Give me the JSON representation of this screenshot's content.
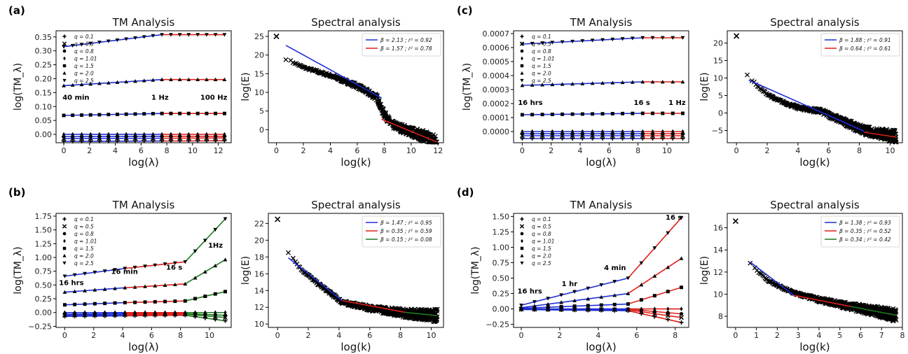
{
  "panels": [
    {
      "label": "(a)"
    },
    {
      "label": "(b)"
    },
    {
      "label": "(c)"
    },
    {
      "label": "(d)"
    }
  ],
  "colors": {
    "blue": "#1f2fd6",
    "red": "#e0201b",
    "green": "#1c7a1c",
    "black": "#000000"
  },
  "chart_data": [
    {
      "id": "a-tm",
      "type": "line",
      "title": "TM Analysis",
      "xlabel": "log(λ)",
      "ylabel": "log(TM_λ)",
      "xlim": [
        -0.6,
        13
      ],
      "ylim": [
        -0.03,
        0.372
      ],
      "xticks": [
        0,
        2,
        4,
        6,
        8,
        10,
        12
      ],
      "xtick_labels": [
        "0",
        "2",
        "4",
        "6",
        "8",
        "10",
        "12"
      ],
      "yticks": [
        0.0,
        0.05,
        0.1,
        0.15,
        0.2,
        0.25,
        0.3,
        0.35
      ],
      "ytick_labels": [
        "0.00",
        "0.05",
        "0.10",
        "0.15",
        "0.20",
        "0.25",
        "0.30",
        "0.35"
      ],
      "breaks": [
        7.6
      ],
      "x": [
        0,
        0.69,
        1.39,
        2.08,
        2.77,
        3.47,
        4.16,
        4.85,
        5.55,
        6.24,
        6.93,
        7.62,
        8.32,
        9.01,
        9.7,
        10.4,
        11.09,
        11.78,
        12.48
      ],
      "legend": [
        "q = 0.1",
        "q = 0.5",
        "q = 0.8",
        "q = 1.01",
        "q = 1.5",
        "q = 2.0",
        "q = 2.5"
      ],
      "series": [
        {
          "name": "q = 0.1",
          "marker": "plus",
          "start": -0.025,
          "mid": -0.024,
          "end": -0.023
        },
        {
          "name": "q = 0.5",
          "marker": "cross",
          "start": -0.015,
          "mid": -0.014,
          "end": -0.013
        },
        {
          "name": "q = 0.8",
          "marker": "circle",
          "start": -0.008,
          "mid": -0.007,
          "end": -0.007
        },
        {
          "name": "q = 1.01",
          "marker": "diamond",
          "start": 0.0,
          "mid": 0.0,
          "end": 0.0
        },
        {
          "name": "q = 1.5",
          "marker": "square",
          "start": 0.068,
          "mid": 0.075,
          "end": 0.075
        },
        {
          "name": "q = 2.0",
          "marker": "triangle",
          "start": 0.175,
          "mid": 0.197,
          "end": 0.197
        },
        {
          "name": "q = 2.5",
          "marker": "tri-down",
          "start": 0.315,
          "mid": 0.358,
          "end": 0.358
        }
      ],
      "annotations": [
        {
          "text": "40 min",
          "x": -0.1,
          "y": 0.125
        },
        {
          "text": "1 Hz",
          "x": 6.8,
          "y": 0.125
        },
        {
          "text": "100 Hz",
          "x": 10.6,
          "y": 0.125
        }
      ]
    },
    {
      "id": "a-spec",
      "type": "scatter",
      "title": "Spectral analysis",
      "xlabel": "log(k)",
      "ylabel": "log(E)",
      "xlim": [
        -0.6,
        12.4
      ],
      "ylim": [
        -3.5,
        26.5
      ],
      "xticks": [
        0,
        2,
        4,
        6,
        8,
        10,
        12
      ],
      "xtick_labels": [
        "0",
        "2",
        "4",
        "6",
        "8",
        "10",
        "12"
      ],
      "yticks": [
        0,
        5,
        10,
        15,
        20,
        25
      ],
      "ytick_labels": [
        "0",
        "5",
        "10",
        "15",
        "20",
        "25"
      ],
      "first_point": [
        0,
        25
      ],
      "fits": [
        {
          "label": "β = 2.13 ; r² = 0.92",
          "color": "blue",
          "x0": 0.7,
          "x1": 7.8,
          "y0": 22.6,
          "y1": 8.5
        },
        {
          "label": "β = 1.57 ; r² = 0.78",
          "color": "red",
          "x0": 7.8,
          "x1": 11.9,
          "y0": 2.8,
          "y1": -3.3
        }
      ],
      "curve": [
        [
          0.7,
          19
        ],
        [
          2,
          16.7
        ],
        [
          4,
          14.5
        ],
        [
          6,
          11.7
        ],
        [
          7.5,
          8.5
        ],
        [
          7.8,
          5.5
        ],
        [
          8.5,
          1.5
        ],
        [
          10,
          -0.6
        ],
        [
          11,
          -1.8
        ],
        [
          11.9,
          -3.2
        ]
      ]
    },
    {
      "id": "b-tm",
      "type": "line",
      "title": "TM Analysis",
      "xlabel": "log(λ)",
      "ylabel": "log(TM_λ)",
      "xlim": [
        -0.6,
        11.5
      ],
      "ylim": [
        -0.27,
        1.8
      ],
      "xticks": [
        0,
        2,
        4,
        6,
        8,
        10
      ],
      "xtick_labels": [
        "0",
        "2",
        "4",
        "6",
        "8",
        "10"
      ],
      "yticks": [
        -0.25,
        0.0,
        0.25,
        0.5,
        0.75,
        1.0,
        1.25,
        1.5,
        1.75
      ],
      "ytick_labels": [
        "−0.25",
        "0.00",
        "0.25",
        "0.50",
        "0.75",
        "1.00",
        "1.25",
        "1.50",
        "1.75"
      ],
      "breaks": [
        4.16,
        8.32
      ],
      "x": [
        0,
        0.69,
        1.39,
        2.08,
        2.77,
        3.47,
        4.16,
        4.85,
        5.55,
        6.24,
        6.93,
        7.62,
        8.32,
        9.01,
        9.7,
        10.4,
        11.09
      ],
      "legend": [
        "q = 0.1",
        "q = 0.5",
        "q = 0.8",
        "q = 1.01",
        "q = 1.5",
        "q = 2.0",
        "q = 2.5"
      ],
      "series": [
        {
          "name": "q = 0.1",
          "marker": "plus",
          "pts": [
            -0.07,
            -0.06,
            -0.05,
            -0.15
          ]
        },
        {
          "name": "q = 0.5",
          "marker": "cross",
          "pts": [
            -0.05,
            -0.04,
            -0.03,
            -0.09
          ]
        },
        {
          "name": "q = 0.8",
          "marker": "circle",
          "pts": [
            -0.03,
            -0.02,
            -0.02,
            -0.05
          ]
        },
        {
          "name": "q = 1.01",
          "marker": "diamond",
          "pts": [
            0.0,
            0.0,
            0.0,
            0.0
          ]
        },
        {
          "name": "q = 1.5",
          "marker": "square",
          "pts": [
            0.14,
            0.18,
            0.21,
            0.38
          ]
        },
        {
          "name": "q = 2.0",
          "marker": "triangle",
          "pts": [
            0.37,
            0.45,
            0.52,
            0.96
          ]
        },
        {
          "name": "q = 2.5",
          "marker": "tri-down",
          "pts": [
            0.66,
            0.8,
            0.92,
            1.7
          ]
        }
      ],
      "annotations": [
        {
          "text": "16 hrs",
          "x": -0.4,
          "y": 0.5
        },
        {
          "text": "16 min",
          "x": 3.2,
          "y": 0.7
        },
        {
          "text": "16 s",
          "x": 7.0,
          "y": 0.78
        },
        {
          "text": "1Hz",
          "x": 9.9,
          "y": 1.18
        }
      ]
    },
    {
      "id": "b-spec",
      "type": "scatter",
      "title": "Spectral analysis",
      "xlabel": "log(k)",
      "ylabel": "log(E)",
      "xlim": [
        -0.6,
        10.8
      ],
      "ylim": [
        9.6,
        23.2
      ],
      "xticks": [
        0,
        2,
        4,
        6,
        8,
        10
      ],
      "xtick_labels": [
        "0",
        "2",
        "4",
        "6",
        "8",
        "10"
      ],
      "yticks": [
        10,
        12,
        14,
        16,
        18,
        20,
        22
      ],
      "ytick_labels": [
        "10",
        "12",
        "14",
        "16",
        "18",
        "20",
        "22"
      ],
      "first_point": [
        0,
        22.5
      ],
      "fits": [
        {
          "label": "β = 1.47 ; r² = 0.95",
          "color": "blue",
          "x0": 0.7,
          "x1": 4.2,
          "y0": 17.9,
          "y1": 12.8
        },
        {
          "label": "β = 0.35 ; r² = 0.59",
          "color": "red",
          "x0": 4.2,
          "x1": 8.3,
          "y0": 12.8,
          "y1": 11.4
        },
        {
          "label": "β = 0.15 ; r² = 0.08",
          "color": "green",
          "x0": 8.3,
          "x1": 10.4,
          "y0": 11.4,
          "y1": 11.0
        }
      ],
      "curve": [
        [
          0.7,
          18.6
        ],
        [
          1.5,
          16.6
        ],
        [
          2.5,
          15.0
        ],
        [
          3.5,
          13.6
        ],
        [
          4.2,
          12.6
        ],
        [
          6,
          11.9
        ],
        [
          8.3,
          11.3
        ],
        [
          10.4,
          11.0
        ]
      ]
    },
    {
      "id": "c-tm",
      "type": "line",
      "title": "TM Analysis",
      "xlabel": "log(λ)",
      "ylabel": "log(TM_λ)",
      "xlim": [
        -0.6,
        11.5
      ],
      "ylim": [
        -8e-05,
        0.00072
      ],
      "xticks": [
        0,
        2,
        4,
        6,
        8,
        10
      ],
      "xtick_labels": [
        "0",
        "2",
        "4",
        "6",
        "8",
        "10"
      ],
      "yticks": [
        0,
        0.0001,
        0.0002,
        0.0003,
        0.0004,
        0.0005,
        0.0006,
        0.0007
      ],
      "ytick_labels": [
        "0.0000",
        "0.0001",
        "0.0002",
        "0.0003",
        "0.0004",
        "0.0005",
        "0.0006",
        "0.0007"
      ],
      "breaks": [
        8.32
      ],
      "x": [
        0,
        0.69,
        1.39,
        2.08,
        2.77,
        3.47,
        4.16,
        4.85,
        5.55,
        6.24,
        6.93,
        7.62,
        8.32,
        9.01,
        9.7,
        10.4,
        11.09
      ],
      "legend": [
        "q = 0.1",
        "q = 0.5",
        "q = 0.8",
        "q = 1.01",
        "q = 1.5",
        "q = 2.0",
        "q = 2.5"
      ],
      "series": [
        {
          "name": "q = 0.1",
          "marker": "plus",
          "start": -5e-05,
          "mid": -5e-05,
          "end": -5e-05
        },
        {
          "name": "q = 0.5",
          "marker": "cross",
          "start": -3e-05,
          "mid": -3e-05,
          "end": -3e-05
        },
        {
          "name": "q = 0.8",
          "marker": "circle",
          "start": -1.5e-05,
          "mid": -1.5e-05,
          "end": -1.5e-05
        },
        {
          "name": "q = 1.01",
          "marker": "diamond",
          "start": 0.0,
          "mid": 0.0,
          "end": 0.0
        },
        {
          "name": "q = 1.5",
          "marker": "square",
          "start": 0.00012,
          "mid": 0.00013,
          "end": 0.00013
        },
        {
          "name": "q = 2.0",
          "marker": "triangle",
          "start": 0.00033,
          "mid": 0.000355,
          "end": 0.000355
        },
        {
          "name": "q = 2.5",
          "marker": "tri-down",
          "start": 0.000625,
          "mid": 0.00067,
          "end": 0.00067
        }
      ],
      "annotations": [
        {
          "text": "16 hrs",
          "x": -0.3,
          "y": 0.00019
        },
        {
          "text": "16 s",
          "x": 7.7,
          "y": 0.00019
        },
        {
          "text": "1 Hz",
          "x": 10.1,
          "y": 0.00019
        }
      ]
    },
    {
      "id": "c-spec",
      "type": "scatter",
      "title": "Spectral analysis",
      "xlabel": "log(k)",
      "ylabel": "log(E)",
      "xlim": [
        -0.6,
        10.8
      ],
      "ylim": [
        -8.5,
        23.5
      ],
      "xticks": [
        0,
        2,
        4,
        6,
        8,
        10
      ],
      "xtick_labels": [
        "0",
        "2",
        "4",
        "6",
        "8",
        "10"
      ],
      "yticks": [
        -5,
        0,
        5,
        10,
        15,
        20
      ],
      "ytick_labels": [
        "−5",
        "0",
        "5",
        "10",
        "15",
        "20"
      ],
      "first_point": [
        0,
        22
      ],
      "fits": [
        {
          "label": "β = 1.88 ; r² = 0.91",
          "color": "blue",
          "x0": 0.8,
          "x1": 8.3,
          "y0": 9.4,
          "y1": -5.2
        },
        {
          "label": "β = 0.64 ; r² = 0.61",
          "color": "red",
          "x0": 8.3,
          "x1": 10.4,
          "y0": -5.5,
          "y1": -6.9
        }
      ],
      "curve": [
        [
          0.7,
          11
        ],
        [
          1.5,
          7
        ],
        [
          2.5,
          4
        ],
        [
          4,
          1.5
        ],
        [
          5.5,
          0.5
        ],
        [
          6.5,
          -1.5
        ],
        [
          8.3,
          -5
        ],
        [
          10.4,
          -6.8
        ]
      ]
    },
    {
      "id": "d-tm",
      "type": "line",
      "title": "TM Analysis",
      "xlabel": "log(λ)",
      "ylabel": "log(TM_λ)",
      "xlim": [
        -0.4,
        8.7
      ],
      "ylim": [
        -0.3,
        1.55
      ],
      "xticks": [
        0,
        2,
        4,
        6,
        8
      ],
      "xtick_labels": [
        "0",
        "2",
        "4",
        "6",
        "8"
      ],
      "yticks": [
        -0.25,
        0.0,
        0.25,
        0.5,
        0.75,
        1.0,
        1.25,
        1.5
      ],
      "ytick_labels": [
        "−0.25",
        "0.00",
        "0.25",
        "0.50",
        "0.75",
        "1.00",
        "1.25",
        "1.50"
      ],
      "breaks": [
        5.55
      ],
      "x": [
        0,
        0.69,
        1.39,
        2.08,
        2.77,
        3.47,
        4.16,
        4.85,
        5.55,
        6.24,
        6.93,
        7.62,
        8.32
      ],
      "legend": [
        "q = 0.1",
        "q = 0.5",
        "q = 0.8",
        "q = 1.01",
        "q = 1.5",
        "q = 2.0",
        "q = 2.5"
      ],
      "series": [
        {
          "name": "q = 0.1",
          "marker": "plus",
          "start": -0.01,
          "mid": -0.03,
          "end": -0.22
        },
        {
          "name": "q = 0.5",
          "marker": "cross",
          "start": -0.005,
          "mid": -0.015,
          "end": -0.14
        },
        {
          "name": "q = 0.8",
          "marker": "circle",
          "start": 0.0,
          "mid": -0.005,
          "end": -0.08
        },
        {
          "name": "q = 1.01",
          "marker": "diamond",
          "start": 0.0,
          "mid": 0.0,
          "end": 0.0
        },
        {
          "name": "q = 1.5",
          "marker": "square",
          "start": 0.01,
          "mid": 0.08,
          "end": 0.35
        },
        {
          "name": "q = 2.0",
          "marker": "triangle",
          "start": 0.02,
          "mid": 0.25,
          "end": 0.82
        },
        {
          "name": "q = 2.5",
          "marker": "tri-down",
          "start": 0.06,
          "mid": 0.5,
          "end": 1.48
        }
      ],
      "annotations": [
        {
          "text": "16 hrs",
          "x": -0.2,
          "y": 0.25
        },
        {
          "text": "1 hr",
          "x": 2.1,
          "y": 0.37
        },
        {
          "text": "4 min",
          "x": 4.3,
          "y": 0.63
        },
        {
          "text": "16 s",
          "x": 7.5,
          "y": 1.45
        }
      ]
    },
    {
      "id": "d-spec",
      "type": "scatter",
      "title": "Spectral analysis",
      "xlabel": "log(k)",
      "ylabel": "log(E)",
      "xlim": [
        -0.4,
        8.0
      ],
      "ylim": [
        7.0,
        17.3
      ],
      "xticks": [
        0,
        1,
        2,
        3,
        4,
        5,
        6,
        7,
        8
      ],
      "xtick_labels": [
        "0",
        "1",
        "2",
        "3",
        "4",
        "5",
        "6",
        "7",
        "8"
      ],
      "yticks": [
        8,
        10,
        12,
        14,
        16
      ],
      "ytick_labels": [
        "8",
        "10",
        "12",
        "14",
        "16"
      ],
      "first_point": [
        0,
        16.6
      ],
      "fits": [
        {
          "label": "β = 1.38 ; r² = 0.93",
          "color": "blue",
          "x0": 0.7,
          "x1": 2.8,
          "y0": 12.9,
          "y1": 9.9
        },
        {
          "label": "β = 0.35 ; r² = 0.52",
          "color": "red",
          "x0": 2.8,
          "x1": 5.5,
          "y0": 9.9,
          "y1": 8.9
        },
        {
          "label": "β = 0.34 ; r² = 0.42",
          "color": "green",
          "x0": 5.5,
          "x1": 7.7,
          "y0": 8.9,
          "y1": 8.1
        }
      ],
      "curve": [
        [
          0.7,
          12.8
        ],
        [
          1.5,
          11.3
        ],
        [
          2.3,
          10.5
        ],
        [
          3,
          10.0
        ],
        [
          4,
          9.5
        ],
        [
          5.5,
          8.9
        ],
        [
          7.7,
          8.1
        ]
      ]
    }
  ]
}
